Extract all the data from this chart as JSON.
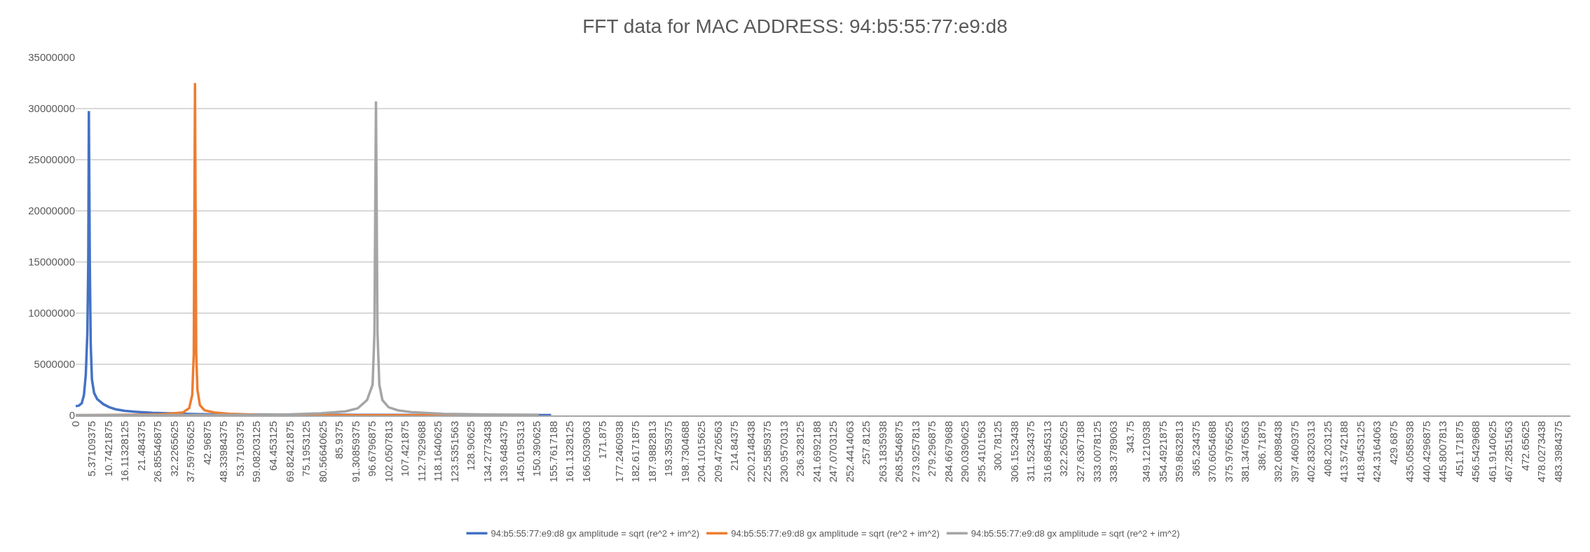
{
  "chart_data": {
    "type": "line",
    "title": "FFT data for MAC ADDRESS: 94:b5:55:77:e9:d8",
    "series": [
      {
        "name": "94:b5:55:77:e9:d8 gx amplitude = sqrt (re^2 + im^2)",
        "color": "#4472c4",
        "x": [
          0,
          1,
          2,
          2.7,
          3.3,
          3.8,
          4.1,
          4.3,
          4.6,
          4.9,
          5.3,
          6,
          7,
          9,
          11,
          13,
          16,
          20,
          25,
          30,
          40,
          60,
          80,
          100,
          130,
          155
        ],
        "values": [
          900000,
          950000,
          1200000,
          2000000,
          4000000,
          8000000,
          15000000,
          29760000,
          15000000,
          7000000,
          3500000,
          2200000,
          1600000,
          1100000,
          800000,
          600000,
          450000,
          350000,
          250000,
          200000,
          120000,
          80000,
          60000,
          50000,
          40000,
          30000
        ]
      },
      {
        "name": "94:b5:55:77:e9:d8 gx amplitude = sqrt (re^2 + im^2)",
        "color": "#ed7d31",
        "x": [
          0,
          10,
          20,
          28,
          31,
          35,
          37,
          38,
          38.5,
          38.9,
          39.3,
          39.7,
          40.5,
          42,
          45,
          50,
          60,
          80,
          100,
          125
        ],
        "values": [
          20000,
          30000,
          60000,
          120000,
          170000,
          300000,
          700000,
          2000000,
          6000000,
          32500000,
          6000000,
          2500000,
          1000000,
          500000,
          300000,
          150000,
          50000,
          30000,
          20000,
          20000
        ]
      },
      {
        "name": "94:b5:55:77:e9:d8 gx amplitude = sqrt (re^2 + im^2)",
        "color": "#a5a5a5",
        "x": [
          0,
          30,
          60,
          70,
          80,
          88,
          92,
          95,
          96.8,
          97.4,
          97.9,
          98.4,
          99,
          100,
          102,
          105,
          110,
          120,
          135,
          151
        ],
        "values": [
          30000,
          40000,
          50000,
          100000,
          200000,
          400000,
          700000,
          1500000,
          3000000,
          8000000,
          30700000,
          8000000,
          3000000,
          1500000,
          800000,
          500000,
          300000,
          150000,
          80000,
          50000
        ]
      }
    ],
    "xlim": [
      0,
      487.3
    ],
    "xticks": [
      0,
      5.37109375,
      10.7421875,
      16.11328125,
      21.484375,
      26.85546875,
      32.2265625,
      37.59765625,
      42.96875,
      48.33984375,
      53.7109375,
      59.08203125,
      64.453125,
      69.82421875,
      75.1953125,
      80.56640625,
      85.9375,
      91.30859375,
      96.6796875,
      {
        "value": 102.05078125,
        "label": "102.0507813"
      },
      107.421875,
      {
        "value": 112.79296875,
        "label": "112.7929688"
      },
      118.1640625,
      {
        "value": 123.53515625,
        "label": "123.5351563"
      },
      128.90625,
      {
        "value": 134.27734375,
        "label": "134.2773438"
      },
      139.6484375,
      {
        "value": 145.01953125,
        "label": "145.0195313"
      },
      150.390625,
      {
        "value": 155.76171875,
        "label": "155.7617188"
      },
      161.1328125,
      {
        "value": 166.50390625,
        "label": "166.5039063"
      },
      171.875,
      {
        "value": 177.24609375,
        "label": "177.2460938"
      },
      182.6171875,
      {
        "value": 187.98828125,
        "label": "187.9882813"
      },
      193.359375,
      {
        "value": 198.73046875,
        "label": "198.7304688"
      },
      204.1015625,
      {
        "value": 209.47265625,
        "label": "209.4726563"
      },
      214.84375,
      {
        "value": 220.21484375,
        "label": "220.2148438"
      },
      225.5859375,
      {
        "value": 230.95703125,
        "label": "230.9570313"
      },
      236.328125,
      {
        "value": 241.69921875,
        "label": "241.6992188"
      },
      247.0703125,
      {
        "value": 252.44140625,
        "label": "252.4414063"
      },
      257.8125,
      {
        "value": 263.18359375,
        "label": "263.1835938"
      },
      268.5546875,
      {
        "value": 273.92578125,
        "label": "273.9257813"
      },
      279.296875,
      {
        "value": 284.66796875,
        "label": "284.6679688"
      },
      290.0390625,
      {
        "value": 295.41015625,
        "label": "295.4101563"
      },
      300.78125,
      {
        "value": 306.15234375,
        "label": "306.1523438"
      },
      311.5234375,
      {
        "value": 316.89453125,
        "label": "316.8945313"
      },
      322.265625,
      {
        "value": 327.63671875,
        "label": "327.6367188"
      },
      333.0078125,
      {
        "value": 338.37890625,
        "label": "338.3789063"
      },
      343.75,
      {
        "value": 349.12109375,
        "label": "349.1210938"
      },
      354.4921875,
      {
        "value": 359.86328125,
        "label": "359.8632813"
      },
      365.234375,
      {
        "value": 370.60546875,
        "label": "370.6054688"
      },
      375.9765625,
      {
        "value": 381.34765625,
        "label": "381.3476563"
      },
      386.71875,
      {
        "value": 392.08984375,
        "label": "392.0898438"
      },
      397.4609375,
      {
        "value": 402.83203125,
        "label": "402.8320313"
      },
      408.203125,
      {
        "value": 413.57421875,
        "label": "413.5742188"
      },
      418.9453125,
      {
        "value": 424.31640625,
        "label": "424.3164063"
      },
      429.6875,
      {
        "value": 435.05859375,
        "label": "435.0585938"
      },
      440.4296875,
      {
        "value": 445.80078125,
        "label": "445.8007813"
      },
      451.171875,
      {
        "value": 456.54296875,
        "label": "456.5429688"
      },
      461.9140625,
      {
        "value": 467.28515625,
        "label": "467.2851563"
      },
      472.65625,
      {
        "value": 478.02734375,
        "label": "478.0273438"
      },
      483.3984375
    ],
    "ylim": [
      0,
      35000000
    ],
    "yticks": [
      0,
      5000000,
      10000000,
      15000000,
      20000000,
      25000000,
      30000000,
      35000000
    ],
    "grid": "y",
    "legend": "bottom",
    "marker": "none",
    "line_style": "solid"
  }
}
